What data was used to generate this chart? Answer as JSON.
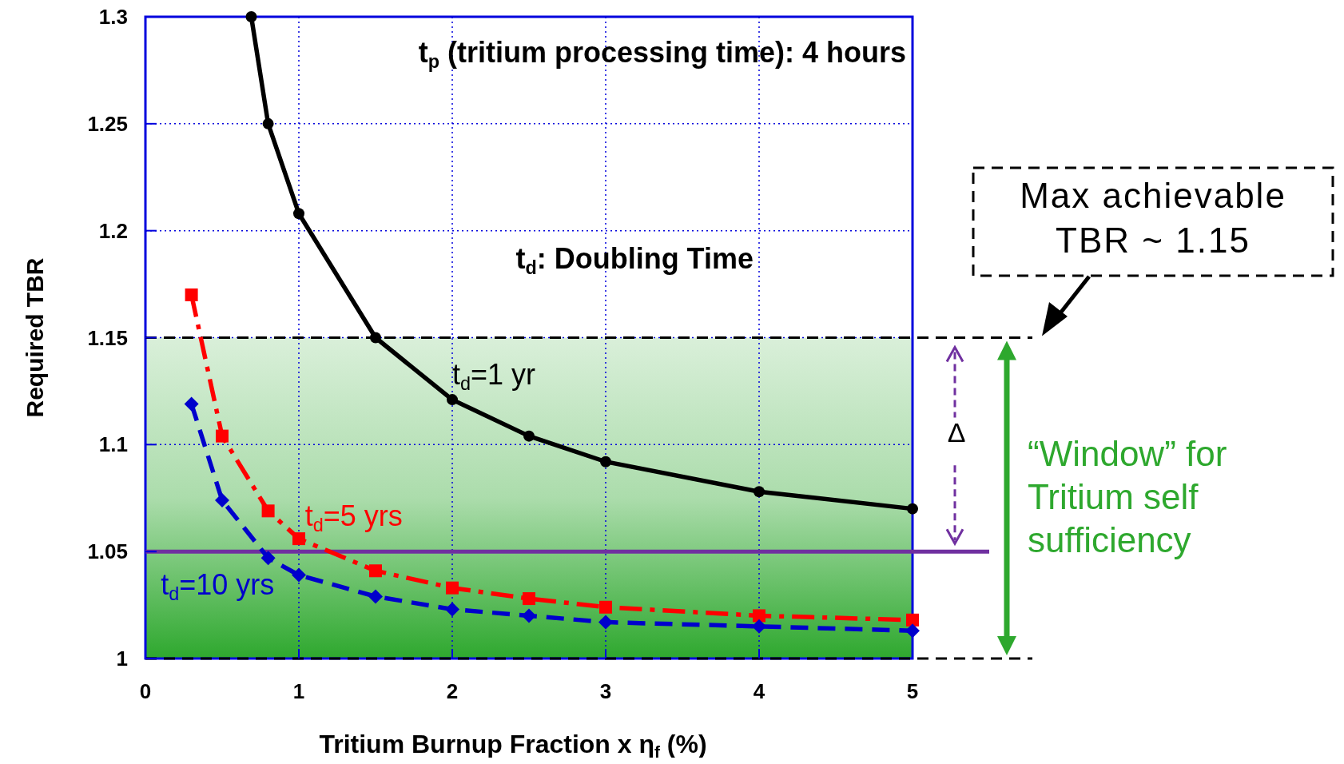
{
  "chart_data": {
    "type": "line",
    "xlabel": "Tritium Burnup Fraction x  η$_{f}$   (%)",
    "ylabel": "Required TBR",
    "xlim": [
      0,
      5
    ],
    "ylim": [
      1,
      1.3
    ],
    "xticks": [
      0,
      1,
      2,
      3,
      4,
      5
    ],
    "yticks": [
      1,
      1.05,
      1.1,
      1.15,
      1.2,
      1.25,
      1.3
    ],
    "grid": true,
    "series": [
      {
        "name": "t$_{d}$=1 yr",
        "color": "#000000",
        "marker": "circle",
        "line_style": "solid",
        "x": [
          0.69,
          0.8,
          1,
          1.5,
          2,
          2.5,
          3,
          4,
          5
        ],
        "values": [
          1.3,
          1.25,
          1.208,
          1.15,
          1.121,
          1.104,
          1.092,
          1.078,
          1.07
        ]
      },
      {
        "name": "t$_{d}$=5 yrs",
        "color": "#ff0000",
        "marker": "square",
        "line_style": "dashdot",
        "x": [
          0.3,
          0.5,
          0.8,
          1,
          1.5,
          2,
          2.5,
          3,
          4,
          5
        ],
        "values": [
          1.17,
          1.104,
          1.069,
          1.056,
          1.041,
          1.033,
          1.028,
          1.024,
          1.02,
          1.018
        ]
      },
      {
        "name": "t$_{d}$=10 yrs",
        "color": "#0000cc",
        "marker": "diamond",
        "line_style": "dashed",
        "x": [
          0.3,
          0.5,
          0.8,
          1,
          1.5,
          2,
          2.5,
          3,
          4,
          5
        ],
        "values": [
          1.119,
          1.074,
          1.047,
          1.039,
          1.029,
          1.023,
          1.02,
          1.017,
          1.015,
          1.013
        ]
      }
    ],
    "ref_lines": [
      {
        "axis": "y",
        "value": 1.15,
        "label": "Max achievable TBR ~ 1.15",
        "color": "#000000",
        "line_style": "dashed"
      },
      {
        "axis": "y",
        "value": 1,
        "label": null,
        "color": "#000000",
        "line_style": "dashed"
      },
      {
        "axis": "y",
        "value": 1.05,
        "label": null,
        "color": "#7030a0",
        "line_style": "solid"
      }
    ],
    "bands": [
      {
        "axis": "y",
        "from": 1,
        "to": 1.15,
        "color": "#2ea82e"
      }
    ],
    "annotations": [
      "t$_{p}$ (tritium processing time): 4 hours",
      "t$_{d}$: Doubling Time",
      "Δ",
      "“Window” for Tritium self sufficiency"
    ]
  }
}
